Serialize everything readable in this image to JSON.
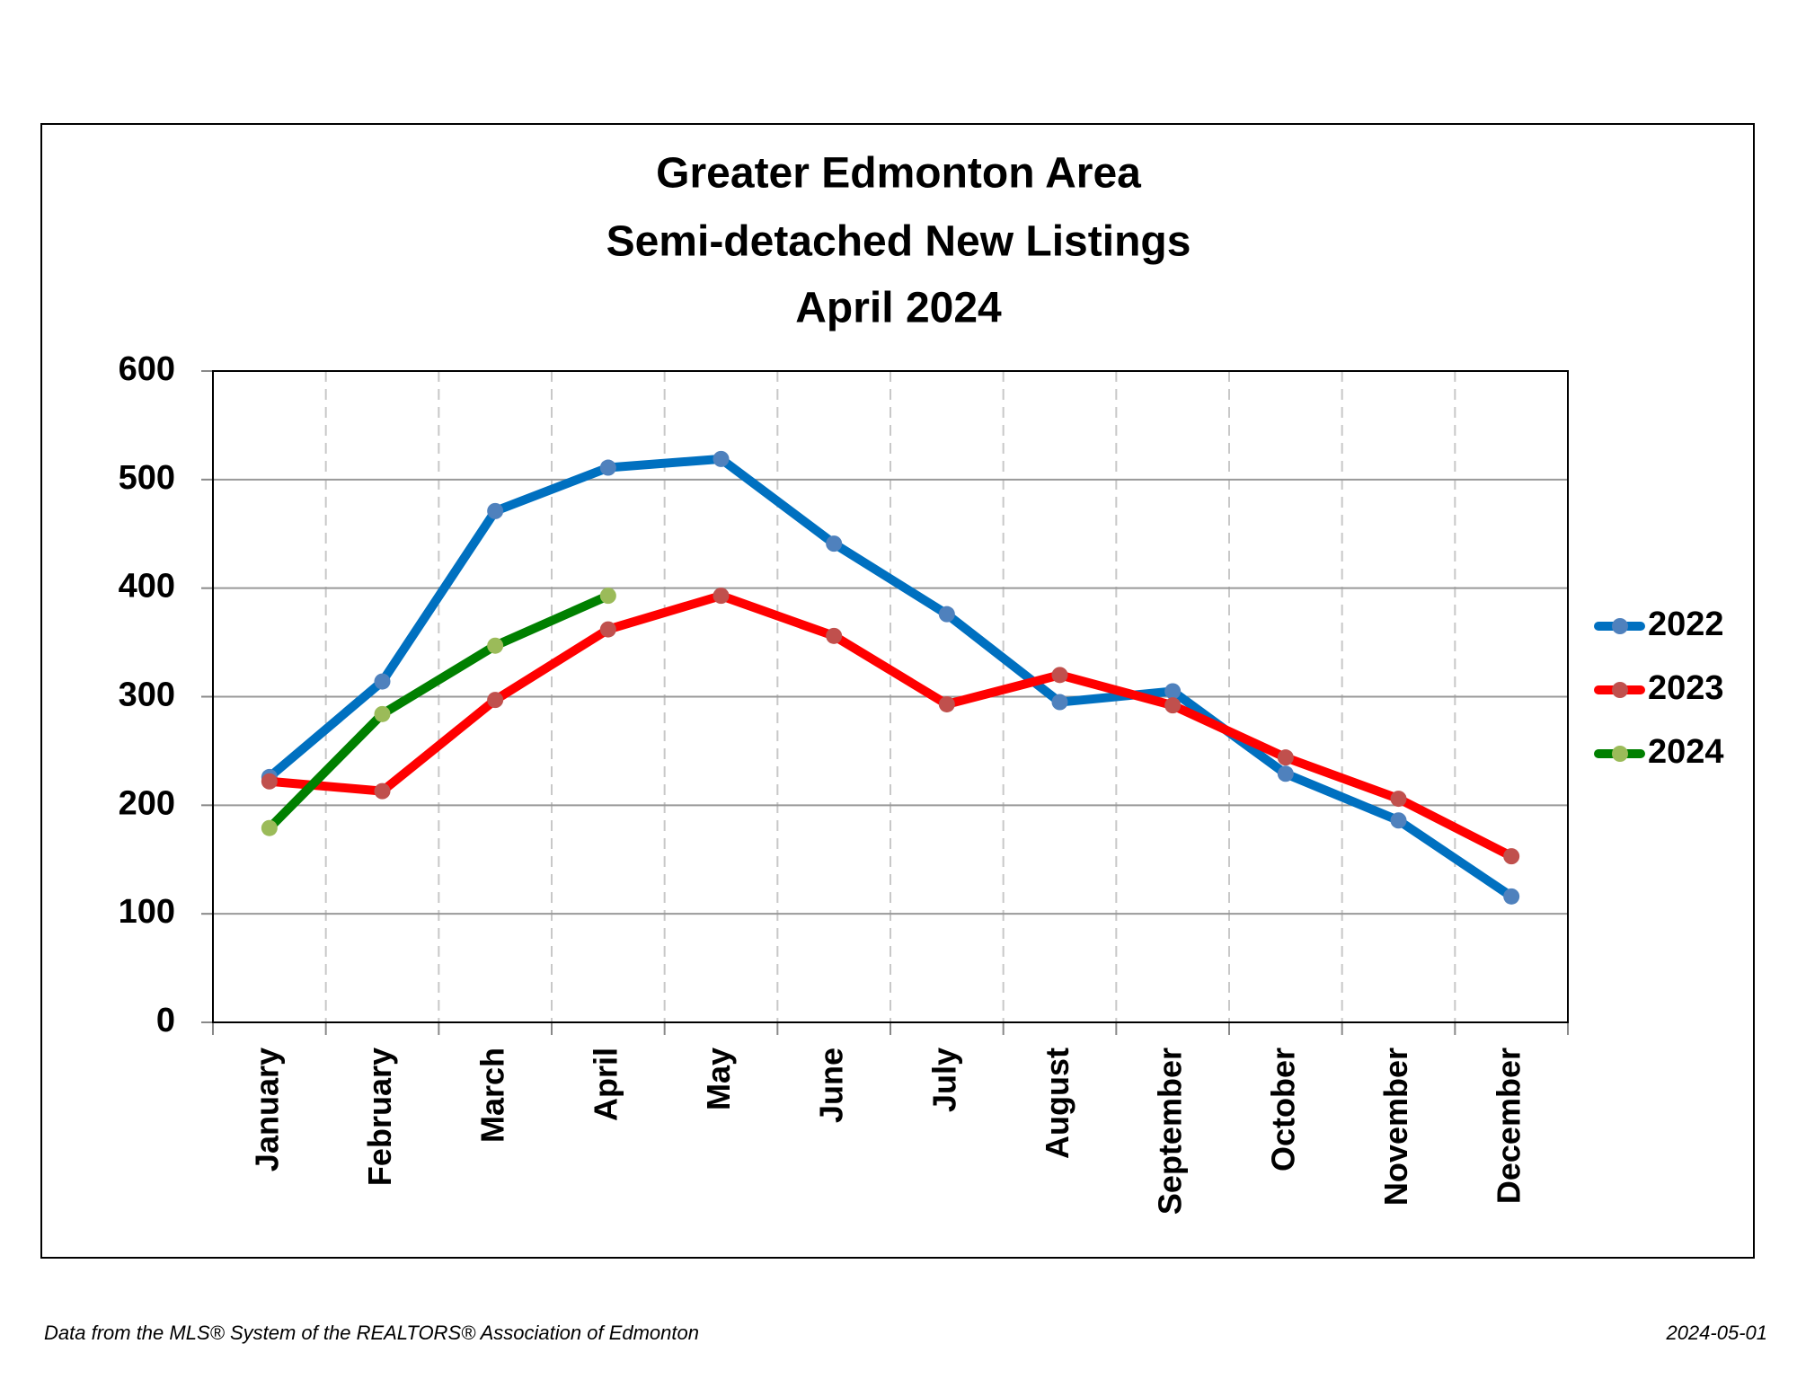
{
  "chart_data": {
    "type": "line",
    "title": [
      "Greater Edmonton Area",
      "Semi-detached New Listings",
      "April 2024"
    ],
    "categories": [
      "January",
      "February",
      "March",
      "April",
      "May",
      "June",
      "July",
      "August",
      "September",
      "October",
      "November",
      "December"
    ],
    "series": [
      {
        "name": "2022",
        "color": "#0070c0",
        "marker_color": "#4f81bd",
        "values": [
          226,
          314,
          471,
          511,
          519,
          441,
          376,
          295,
          305,
          229,
          186,
          116
        ]
      },
      {
        "name": "2023",
        "color": "#ff0000",
        "marker_color": "#c0504d",
        "values": [
          222,
          213,
          297,
          362,
          393,
          356,
          293,
          320,
          292,
          244,
          206,
          153
        ]
      },
      {
        "name": "2024",
        "color": "#008000",
        "marker_color": "#9bbb59",
        "values": [
          179,
          284,
          347,
          393,
          null,
          null,
          null,
          null,
          null,
          null,
          null,
          null
        ]
      }
    ],
    "ylim": [
      0,
      600
    ],
    "yticks": [
      0,
      100,
      200,
      300,
      400,
      500,
      600
    ],
    "grid": true,
    "legend": "right"
  },
  "footer": {
    "source": "Data from the MLS® System of the REALTORS® Association of Edmonton",
    "date": "2024-05-01"
  }
}
